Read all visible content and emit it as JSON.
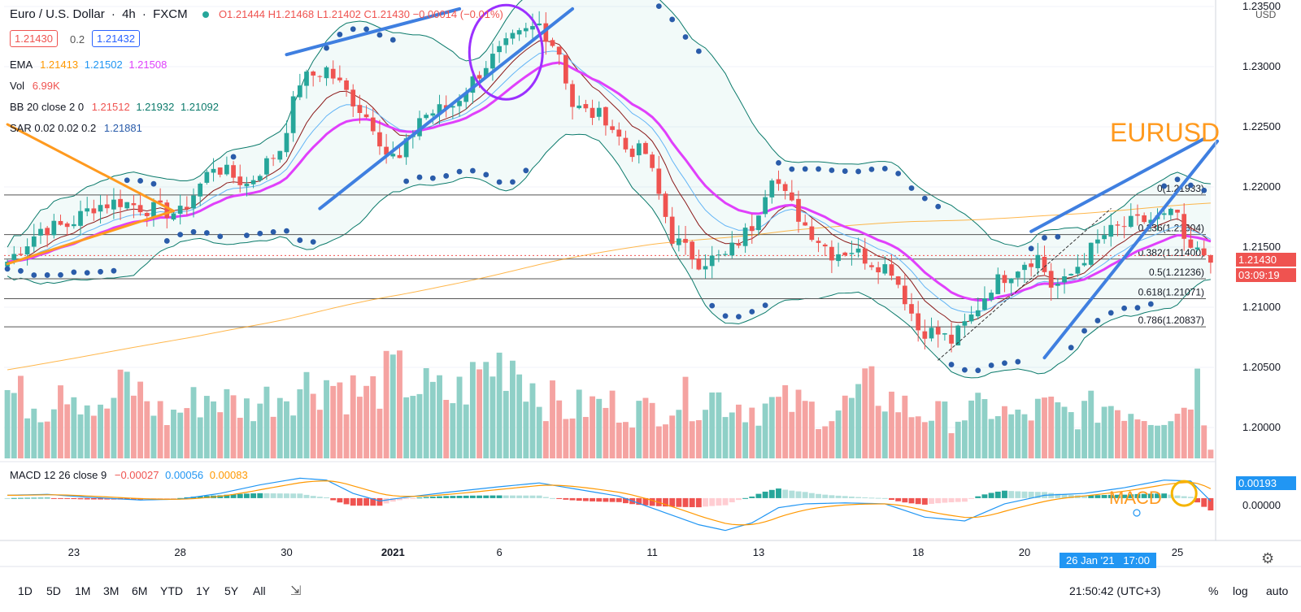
{
  "header": {
    "symbol": "Euro / U.S. Dollar",
    "interval": "4h",
    "exchange": "FXCM",
    "open": "O1.21444",
    "high": "H1.21468",
    "low": "L1.21402",
    "close": "C1.21430",
    "change": "−0.00014 (−0.01%)",
    "bid": "1.21430",
    "spread": "0.2",
    "ask": "1.21432"
  },
  "indicators": {
    "ema_label": "EMA",
    "ema_v1": "1.21413",
    "ema_v2": "1.21502",
    "ema_v3": "1.21508",
    "vol_label": "Vol",
    "vol_value": "6.99K",
    "bb_label": "BB 20 close 2 0",
    "bb_v1": "1.21512",
    "bb_v2": "1.21932",
    "bb_v3": "1.21092",
    "sar_label": "SAR 0.02 0.02 0.2",
    "sar_value": "1.21881",
    "macd_label": "MACD 12 26 close 9",
    "macd_v1": "−0.00027",
    "macd_v2": "0.00056",
    "macd_v3": "0.00083"
  },
  "annotations": {
    "eurusd": "EURUSD",
    "macd": "MACD"
  },
  "price_axis": {
    "currency": "USD",
    "last_price": "1.21430",
    "countdown": "03:09:19",
    "macd_tag": "0.00193",
    "macd_zero": "0.00000"
  },
  "crosshair_time": "26 Jan '21   17:00",
  "timeframes": [
    "1D",
    "5D",
    "1M",
    "3M",
    "6M",
    "YTD",
    "1Y",
    "5Y",
    "All"
  ],
  "clock": "21:50:42 (UTC+3)",
  "scale_buttons": {
    "percent": "%",
    "log": "log",
    "auto": "auto"
  },
  "colors": {
    "up": "#26a69a",
    "down": "#ef5350",
    "ema_fast": "#ff9800",
    "ema_slow": "#e040fb",
    "bb": "#0b7a6b",
    "sar": "#2a5caa",
    "trend_blue": "#3f7fe0",
    "trend_orange": "#ff9a1f",
    "fib": "#555555"
  },
  "chart_data": {
    "type": "candlestick",
    "title": "Euro / U.S. Dollar, 4h, FXCM",
    "ylim": [
      1.1975,
      1.2352
    ],
    "y_ticks": [
      1.2,
      1.205,
      1.21,
      1.215,
      1.22,
      1.225,
      1.23,
      1.235
    ],
    "y_tick_labels": [
      "1.20000",
      "1.20500",
      "1.21000",
      "1.21500",
      "1.22000",
      "1.22500",
      "1.23000",
      "1.23500"
    ],
    "x_ticks": [
      {
        "label": "23",
        "index": 10
      },
      {
        "label": "28",
        "index": 26
      },
      {
        "label": "30",
        "index": 42
      },
      {
        "label": "2021",
        "index": 58
      },
      {
        "label": "6",
        "index": 74
      },
      {
        "label": "11",
        "index": 97
      },
      {
        "label": "13",
        "index": 113
      },
      {
        "label": "18",
        "index": 137
      },
      {
        "label": "20",
        "index": 153
      },
      {
        "label": "25",
        "index": 176
      }
    ],
    "fib_levels": [
      {
        "label": "0(1.21933)",
        "value": 1.21933
      },
      {
        "label": "0.236(1.21604)",
        "value": 1.21604
      },
      {
        "label": "0.382(1.21400)",
        "value": 1.214
      },
      {
        "label": "0.5(1.21236)",
        "value": 1.21236
      },
      {
        "label": "0.618(1.21071)",
        "value": 1.21071
      },
      {
        "label": "0.786(1.20837)",
        "value": 1.20837
      }
    ],
    "close_anchors": [
      [
        0,
        1.2138
      ],
      [
        5,
        1.2165
      ],
      [
        9,
        1.2168
      ],
      [
        13,
        1.2184
      ],
      [
        17,
        1.2188
      ],
      [
        21,
        1.2182
      ],
      [
        26,
        1.2178
      ],
      [
        31,
        1.2218
      ],
      [
        36,
        1.2202
      ],
      [
        41,
        1.2232
      ],
      [
        44,
        1.2288
      ],
      [
        48,
        1.2298
      ],
      [
        52,
        1.2272
      ],
      [
        55,
        1.2252
      ],
      [
        57,
        1.2228
      ],
      [
        59,
        1.2222
      ],
      [
        62,
        1.2258
      ],
      [
        67,
        1.2268
      ],
      [
        72,
        1.2302
      ],
      [
        76,
        1.2322
      ],
      [
        80,
        1.2335
      ],
      [
        83,
        1.2312
      ],
      [
        85,
        1.2268
      ],
      [
        87,
        1.2262
      ],
      [
        90,
        1.2258
      ],
      [
        93,
        1.2232
      ],
      [
        96,
        1.2228
      ],
      [
        100,
        1.2158
      ],
      [
        104,
        1.2138
      ],
      [
        108,
        1.2142
      ],
      [
        112,
        1.2168
      ],
      [
        115,
        1.2212
      ],
      [
        117,
        1.2192
      ],
      [
        120,
        1.2168
      ],
      [
        124,
        1.2145
      ],
      [
        127,
        1.2148
      ],
      [
        130,
        1.2138
      ],
      [
        133,
        1.2132
      ],
      [
        135,
        1.2108
      ],
      [
        137,
        1.2082
      ],
      [
        140,
        1.2078
      ],
      [
        142,
        1.2072
      ],
      [
        145,
        1.2092
      ],
      [
        148,
        1.2118
      ],
      [
        151,
        1.213
      ],
      [
        153,
        1.2138
      ],
      [
        155,
        1.2142
      ],
      [
        157,
        1.2118
      ],
      [
        159,
        1.212
      ],
      [
        162,
        1.2142
      ],
      [
        165,
        1.216
      ],
      [
        168,
        1.2168
      ],
      [
        171,
        1.2172
      ],
      [
        174,
        1.2174
      ],
      [
        176,
        1.2178
      ],
      [
        177,
        1.215
      ],
      [
        179,
        1.2145
      ],
      [
        181,
        1.2143
      ]
    ],
    "volume_anchors": [
      [
        0,
        3.4
      ],
      [
        6,
        2.6
      ],
      [
        8,
        4.3
      ],
      [
        14,
        2.2
      ],
      [
        18,
        3.9
      ],
      [
        24,
        2.1
      ],
      [
        30,
        3.2
      ],
      [
        36,
        2.6
      ],
      [
        42,
        3.5
      ],
      [
        48,
        4.0
      ],
      [
        54,
        3.2
      ],
      [
        58,
        4.3
      ],
      [
        62,
        3.6
      ],
      [
        67,
        3.1
      ],
      [
        72,
        4.6
      ],
      [
        76,
        5.2
      ],
      [
        80,
        3.3
      ],
      [
        84,
        2.5
      ],
      [
        90,
        2.8
      ],
      [
        96,
        2.4
      ],
      [
        100,
        2.9
      ],
      [
        106,
        3.2
      ],
      [
        112,
        2.6
      ],
      [
        118,
        2.8
      ],
      [
        124,
        2.2
      ],
      [
        130,
        3.6
      ],
      [
        136,
        2.4
      ],
      [
        142,
        2.1
      ],
      [
        148,
        2.6
      ],
      [
        152,
        2.0
      ],
      [
        156,
        2.6
      ],
      [
        160,
        2.2
      ],
      [
        166,
        2.8
      ],
      [
        172,
        2.3
      ],
      [
        176,
        2.3
      ],
      [
        178,
        3.6
      ],
      [
        179,
        4.0
      ],
      [
        181,
        0.5
      ]
    ],
    "volume_max": 5.6,
    "macd_anchors": [
      [
        0,
        0.0003
      ],
      [
        6,
        0.0004
      ],
      [
        12,
        0.0001
      ],
      [
        20,
        -0.0002
      ],
      [
        26,
        -0.0001
      ],
      [
        32,
        0.0005
      ],
      [
        38,
        0.0014
      ],
      [
        44,
        0.0021
      ],
      [
        48,
        0.0019
      ],
      [
        52,
        0.0005
      ],
      [
        56,
        -0.0003
      ],
      [
        60,
        0.0001
      ],
      [
        66,
        0.0006
      ],
      [
        74,
        0.0012
      ],
      [
        80,
        0.0016
      ],
      [
        86,
        0.0009
      ],
      [
        92,
        0.0002
      ],
      [
        98,
        -0.0013
      ],
      [
        104,
        -0.0028
      ],
      [
        108,
        -0.0034
      ],
      [
        112,
        -0.0026
      ],
      [
        116,
        -0.001
      ],
      [
        120,
        -0.0006
      ],
      [
        126,
        -0.0005
      ],
      [
        132,
        -0.0006
      ],
      [
        138,
        -0.002
      ],
      [
        144,
        -0.0024
      ],
      [
        150,
        -0.0006
      ],
      [
        156,
        0.0003
      ],
      [
        162,
        0.0005
      ],
      [
        168,
        0.0011
      ],
      [
        174,
        0.0019
      ],
      [
        178,
        0.0018
      ],
      [
        181,
        -0.0003
      ]
    ],
    "macd_ylim": [
      -0.0042,
      0.0035
    ]
  }
}
